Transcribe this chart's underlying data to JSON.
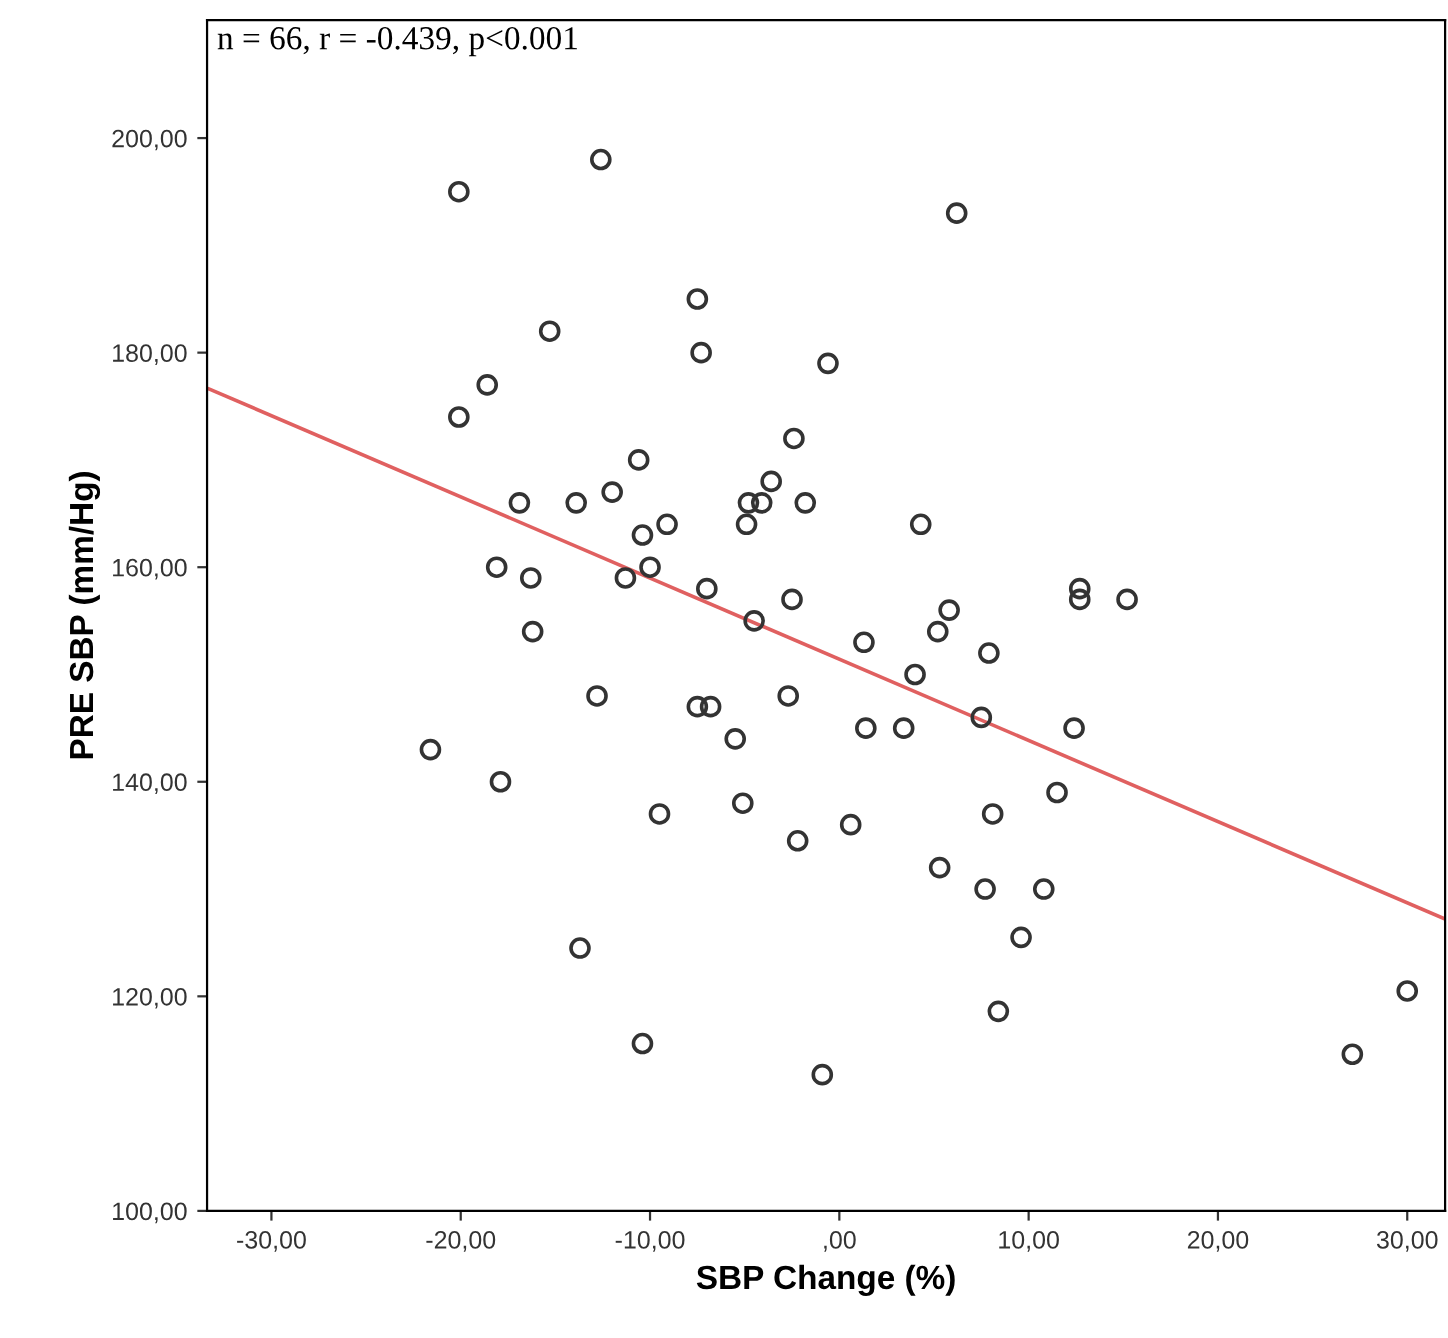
{
  "chart_data": {
    "type": "scatter",
    "xlabel": "SBP Change (%)",
    "ylabel": "PRE SBP (mm/Hg)",
    "annotations": [
      "n = 66, r = -0.439, p<0.001"
    ],
    "xlim": [
      -33.4,
      32
    ],
    "ylim": [
      100,
      211
    ],
    "xticks": [
      {
        "value": -30,
        "label": "-30,00"
      },
      {
        "value": -20,
        "label": "-20,00"
      },
      {
        "value": -10,
        "label": "-10,00"
      },
      {
        "value": 0,
        "label": ",00"
      },
      {
        "value": 10,
        "label": "10,00"
      },
      {
        "value": 20,
        "label": "20,00"
      },
      {
        "value": 30,
        "label": "30,00"
      }
    ],
    "yticks": [
      {
        "value": 100,
        "label": "100,00"
      },
      {
        "value": 120,
        "label": "120,00"
      },
      {
        "value": 140,
        "label": "140,00"
      },
      {
        "value": 160,
        "label": "160,00"
      },
      {
        "value": 180,
        "label": "180,00"
      },
      {
        "value": 200,
        "label": "200,00"
      }
    ],
    "grid": false,
    "legend": false,
    "marker": "circle",
    "series": [
      {
        "color": "#333333",
        "x": [
          -20.1,
          -12.6,
          -7.5,
          -15.3,
          -7.3,
          -0.6,
          -18.6,
          -20.1,
          -2.4,
          -10.6,
          -16.9,
          -13.9,
          -12.0,
          -3.6,
          -4.8,
          -4.1,
          -1.8,
          -10.4,
          -9.1,
          -4.9,
          -18.1,
          -16.3,
          -11.3,
          -10.0,
          -7.0,
          -4.5,
          -2.5,
          -16.2,
          6.2,
          4.3,
          12.7,
          12.7,
          15.2,
          5.8,
          5.2,
          1.3,
          7.9,
          4.0,
          -12.8,
          -7.5,
          -6.8,
          -2.7,
          -21.6,
          -5.5,
          -17.9,
          -9.5,
          -5.1,
          0.6,
          -2.2,
          -13.7,
          -10.4,
          -0.9,
          1.4,
          3.4,
          7.5,
          12.4,
          11.5,
          8.1,
          5.3,
          7.7,
          10.8,
          9.6,
          8.4,
          30.0,
          27.1
        ],
        "values": [
          195,
          198,
          185,
          182,
          180,
          179,
          177,
          174,
          172,
          170,
          166,
          166,
          167,
          168,
          166,
          166,
          166,
          163,
          164,
          164,
          160,
          159,
          159,
          160,
          158,
          155,
          157,
          154,
          193,
          164,
          158,
          157,
          157,
          156,
          154,
          153,
          152,
          150,
          148,
          147,
          147,
          148,
          143,
          144,
          140,
          137,
          138,
          136,
          134.5,
          124.5,
          115.6,
          112.7,
          145,
          145,
          146,
          145,
          139,
          137,
          132,
          130,
          130,
          125.5,
          118.6,
          120.5,
          114.6
        ]
      },
      {
        "type": "line",
        "color": "#e06060",
        "marker": "none",
        "x": [
          -33.4,
          32
        ],
        "values": [
          176.7,
          127.2
        ]
      }
    ]
  }
}
